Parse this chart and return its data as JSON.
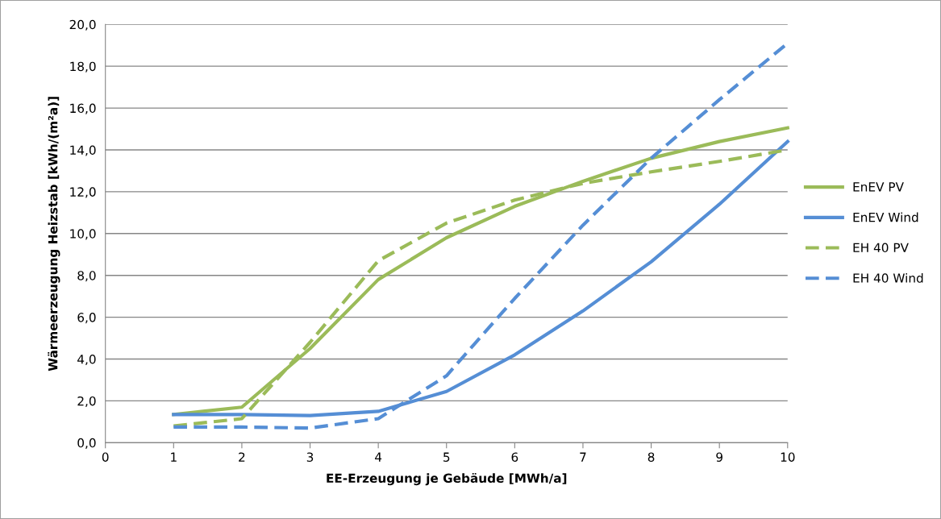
{
  "chart_data": {
    "type": "line",
    "xlabel": "EE-Erzeugung je Gebäude [MWh/a]",
    "ylabel": "Wärmeerzeugung Heizstab [kWh/(m²a)]",
    "x": [
      1,
      2,
      3,
      4,
      5,
      6,
      7,
      8,
      9,
      10
    ],
    "series": [
      {
        "name": "EnEV PV",
        "color": "#9bbb59",
        "line_style": "solid",
        "values": [
          1.35,
          1.7,
          4.5,
          7.8,
          9.8,
          11.3,
          12.5,
          13.6,
          14.4,
          15.05
        ]
      },
      {
        "name": "EnEV Wind",
        "color": "#558ed5",
        "line_style": "solid",
        "values": [
          1.35,
          1.35,
          1.3,
          1.5,
          2.45,
          4.2,
          6.3,
          8.65,
          11.4,
          14.4
        ]
      },
      {
        "name": "EH 40 PV",
        "color": "#9bbb59",
        "line_style": "dashed",
        "values": [
          0.8,
          1.15,
          4.8,
          8.7,
          10.5,
          11.6,
          12.4,
          12.95,
          13.45,
          14.0
        ]
      },
      {
        "name": "EH 40 Wind",
        "color": "#558ed5",
        "line_style": "dashed",
        "values": [
          0.75,
          0.75,
          0.7,
          1.15,
          3.2,
          6.9,
          10.4,
          13.6,
          16.4,
          19.1
        ]
      }
    ],
    "xlim": [
      0,
      10
    ],
    "ylim": [
      0,
      20
    ],
    "xticks": [
      0,
      1,
      2,
      3,
      4,
      5,
      6,
      7,
      8,
      9,
      10
    ],
    "yticks": [
      {
        "value": 0,
        "label": "0,0"
      },
      {
        "value": 2,
        "label": "2,0"
      },
      {
        "value": 4,
        "label": "4,0"
      },
      {
        "value": 6,
        "label": "6,0"
      },
      {
        "value": 8,
        "label": "8,0"
      },
      {
        "value": 10,
        "label": "10,0"
      },
      {
        "value": 12,
        "label": "12,0"
      },
      {
        "value": 14,
        "label": "14,0"
      },
      {
        "value": 16,
        "label": "16,0"
      },
      {
        "value": 18,
        "label": "18,0"
      },
      {
        "value": 20,
        "label": "20,0"
      }
    ],
    "grid": "y",
    "legend": "right",
    "marker": "none"
  }
}
